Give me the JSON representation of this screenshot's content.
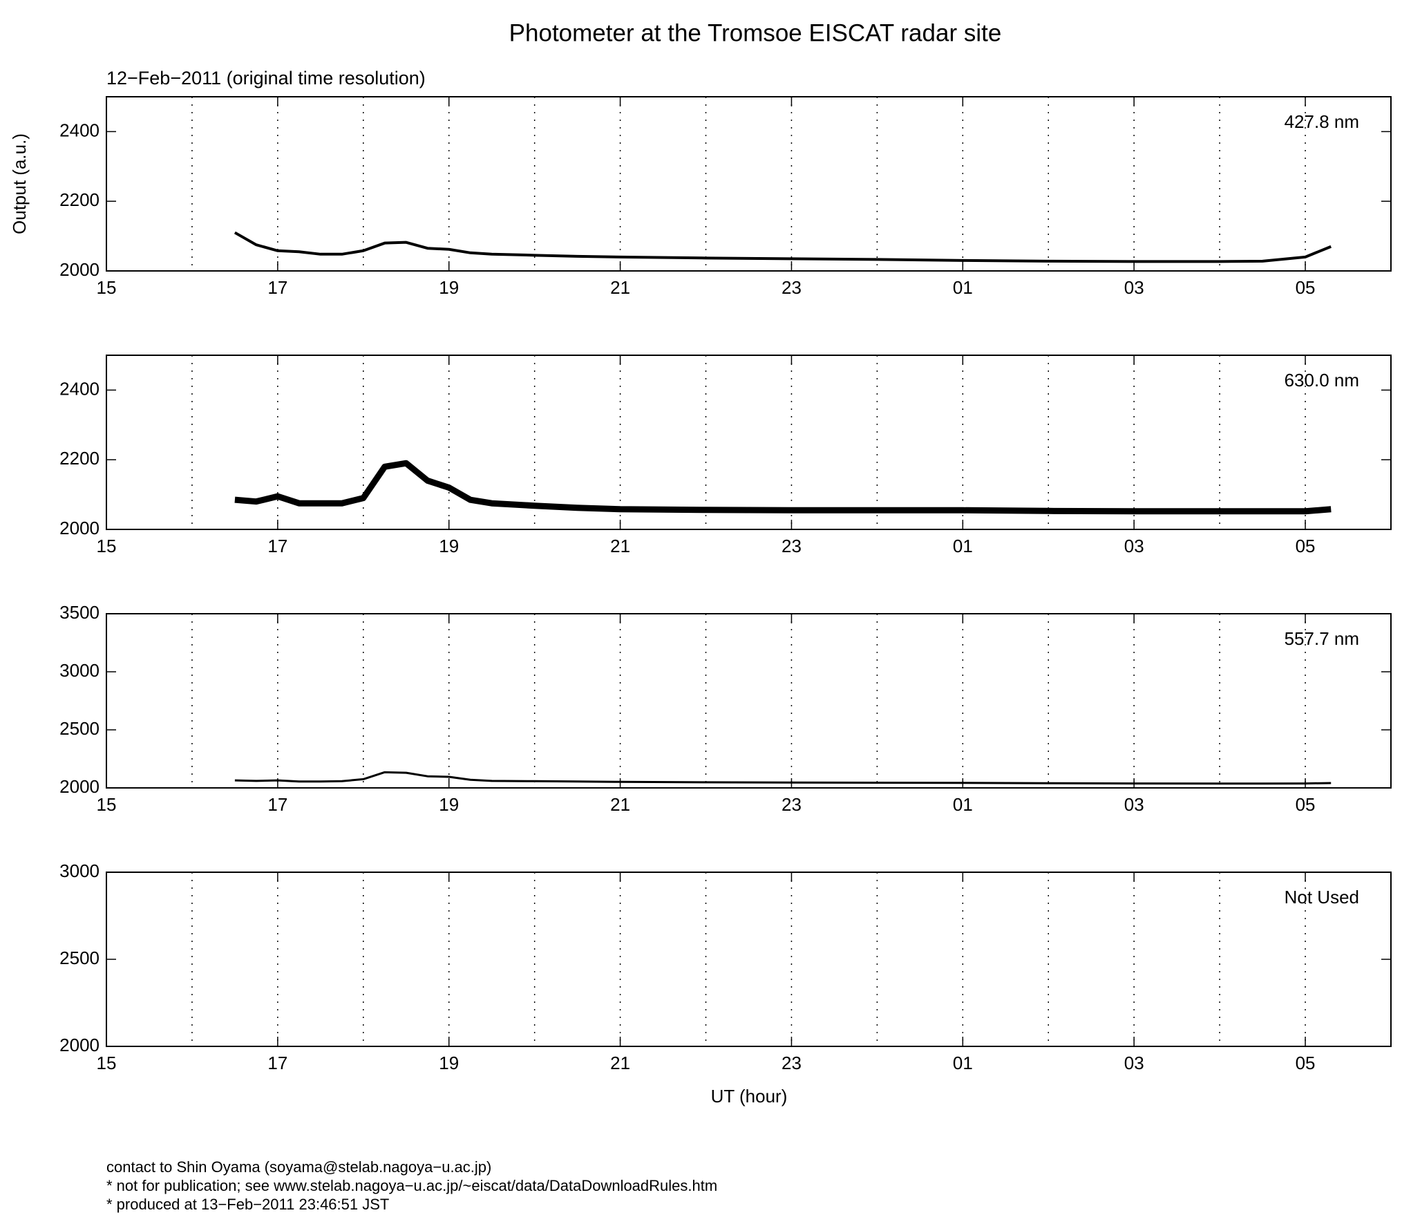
{
  "title": "Photometer at the Tromsoe EISCAT radar site",
  "subtitle": "12−Feb−2011 (original time resolution)",
  "ylabel": "Output (a.u.)",
  "xlabel": "UT (hour)",
  "footer": [
    "contact to Shin Oyama (soyama@stelab.nagoya−u.ac.jp)",
    "* not for publication; see www.stelab.nagoya−u.ac.jp/~eiscat/data/DataDownloadRules.htm",
    "* produced at 13−Feb−2011 23:46:51 JST"
  ],
  "chart_data": [
    {
      "type": "line",
      "label": "427.8 nm",
      "xlim": [
        15,
        30
      ],
      "ylim": [
        2000,
        2500
      ],
      "yticks": [
        2000,
        2200,
        2400
      ],
      "xticks": [
        15,
        17,
        19,
        21,
        23,
        {
          "value": 25,
          "label": "01"
        },
        {
          "value": 27,
          "label": "03"
        },
        {
          "value": 29,
          "label": "05"
        }
      ],
      "xgrid": [
        16,
        17,
        18,
        19,
        20,
        21,
        22,
        23,
        24,
        25,
        26,
        27,
        28,
        29
      ],
      "x": [
        16.5,
        16.75,
        17,
        17.25,
        17.5,
        17.75,
        18,
        18.25,
        18.5,
        18.75,
        19,
        19.25,
        19.5,
        20,
        20.5,
        21,
        22,
        23,
        24,
        25,
        26,
        27,
        28,
        28.5,
        29,
        29.3
      ],
      "series": [
        {
          "color": "#000000",
          "values": [
            2110,
            2075,
            2058,
            2055,
            2048,
            2048,
            2058,
            2080,
            2082,
            2065,
            2062,
            2052,
            2048,
            2045,
            2042,
            2040,
            2037,
            2035,
            2033,
            2030,
            2028,
            2027,
            2027,
            2028,
            2040,
            2070
          ]
        }
      ]
    },
    {
      "type": "line",
      "label": "630.0 nm",
      "xlim": [
        15,
        30
      ],
      "ylim": [
        2000,
        2500
      ],
      "yticks": [
        2000,
        2200,
        2400
      ],
      "xticks": [
        15,
        17,
        19,
        21,
        23,
        {
          "value": 25,
          "label": "01"
        },
        {
          "value": 27,
          "label": "03"
        },
        {
          "value": 29,
          "label": "05"
        }
      ],
      "xgrid": [
        16,
        17,
        18,
        19,
        20,
        21,
        22,
        23,
        24,
        25,
        26,
        27,
        28,
        29
      ],
      "x": [
        16.5,
        16.75,
        17,
        17.25,
        17.5,
        17.75,
        18,
        18.25,
        18.5,
        18.75,
        19,
        19.25,
        19.5,
        20,
        20.5,
        21,
        22,
        23,
        24,
        25,
        26,
        27,
        28,
        28.5,
        29,
        29.3
      ],
      "series": [
        {
          "color": "#000000",
          "values": [
            2085,
            2080,
            2095,
            2075,
            2075,
            2075,
            2090,
            2180,
            2190,
            2140,
            2120,
            2085,
            2075,
            2068,
            2062,
            2058,
            2056,
            2055,
            2055,
            2055,
            2053,
            2052,
            2052,
            2052,
            2052,
            2058
          ]
        }
      ]
    },
    {
      "type": "line",
      "label": "557.7 nm",
      "xlim": [
        15,
        30
      ],
      "ylim": [
        2000,
        3500
      ],
      "yticks": [
        2000,
        2500,
        3000,
        3500
      ],
      "xticks": [
        15,
        17,
        19,
        21,
        23,
        {
          "value": 25,
          "label": "01"
        },
        {
          "value": 27,
          "label": "03"
        },
        {
          "value": 29,
          "label": "05"
        }
      ],
      "xgrid": [
        16,
        17,
        18,
        19,
        20,
        21,
        22,
        23,
        24,
        25,
        26,
        27,
        28,
        29
      ],
      "x": [
        16.5,
        16.75,
        17,
        17.25,
        17.5,
        17.75,
        18,
        18.25,
        18.5,
        18.75,
        19,
        19.25,
        19.5,
        20,
        20.5,
        21,
        22,
        23,
        24,
        25,
        26,
        27,
        28,
        28.5,
        29,
        29.3
      ],
      "series": [
        {
          "color": "#000000",
          "values": [
            2065,
            2060,
            2065,
            2055,
            2055,
            2058,
            2075,
            2135,
            2130,
            2100,
            2095,
            2070,
            2060,
            2058,
            2055,
            2052,
            2048,
            2046,
            2045,
            2043,
            2040,
            2038,
            2037,
            2037,
            2038,
            2042
          ]
        }
      ]
    },
    {
      "type": "line",
      "label": "Not Used",
      "xlim": [
        15,
        30
      ],
      "ylim": [
        2000,
        3000
      ],
      "yticks": [
        2000,
        2500,
        3000
      ],
      "xticks": [
        15,
        17,
        19,
        21,
        23,
        {
          "value": 25,
          "label": "01"
        },
        {
          "value": 27,
          "label": "03"
        },
        {
          "value": 29,
          "label": "05"
        }
      ],
      "xgrid": [
        16,
        17,
        18,
        19,
        20,
        21,
        22,
        23,
        24,
        25,
        26,
        27,
        28,
        29
      ],
      "x": [],
      "series": []
    }
  ]
}
